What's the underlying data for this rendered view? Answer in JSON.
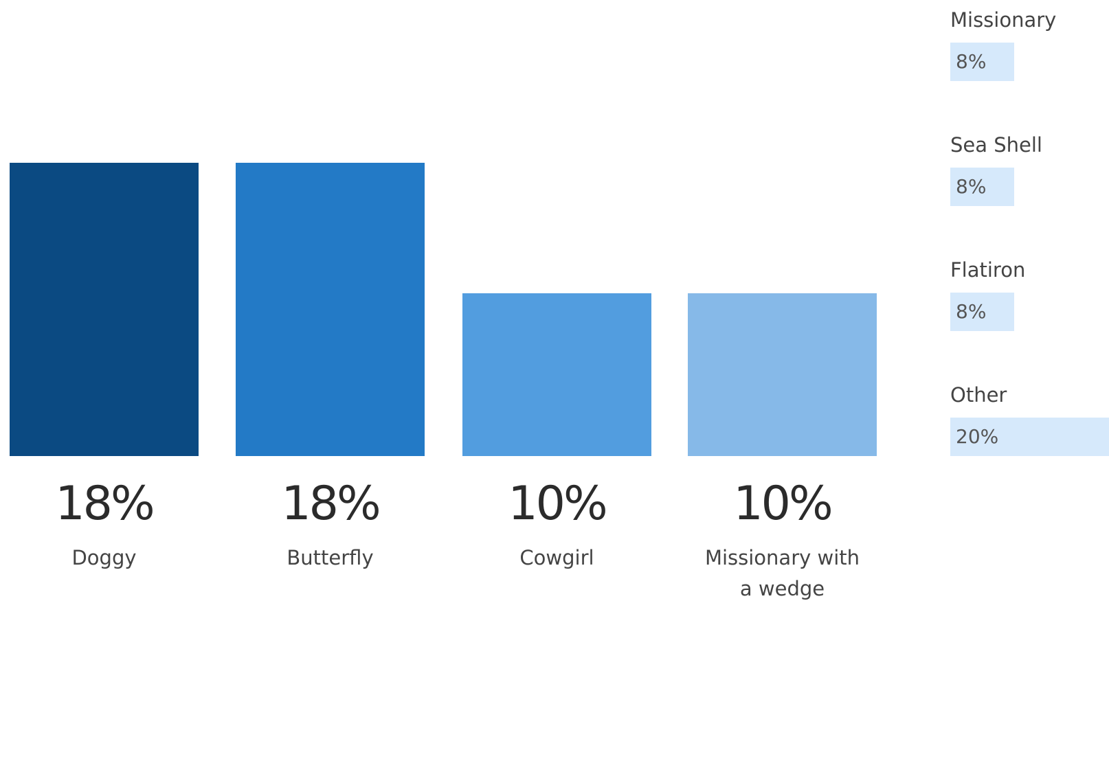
{
  "chart_data": [
    {
      "type": "bar",
      "categories": [
        "Doggy",
        "Butterfly",
        "Cowgirl",
        "Missionary with a wedge"
      ],
      "values": [
        18,
        18,
        10,
        10
      ],
      "value_labels": [
        "18%",
        "18%",
        "10%",
        "10%"
      ],
      "colors": [
        "#0b4a82",
        "#237ac6",
        "#529ddf",
        "#86b9e8"
      ]
    },
    {
      "type": "hbar",
      "categories": [
        "Missionary",
        "Sea Shell",
        "Flatiron",
        "Other"
      ],
      "values": [
        8,
        8,
        8,
        20
      ],
      "value_labels": [
        "8%",
        "8%",
        "8%",
        "20%"
      ],
      "color": "#d6e9fb"
    }
  ]
}
